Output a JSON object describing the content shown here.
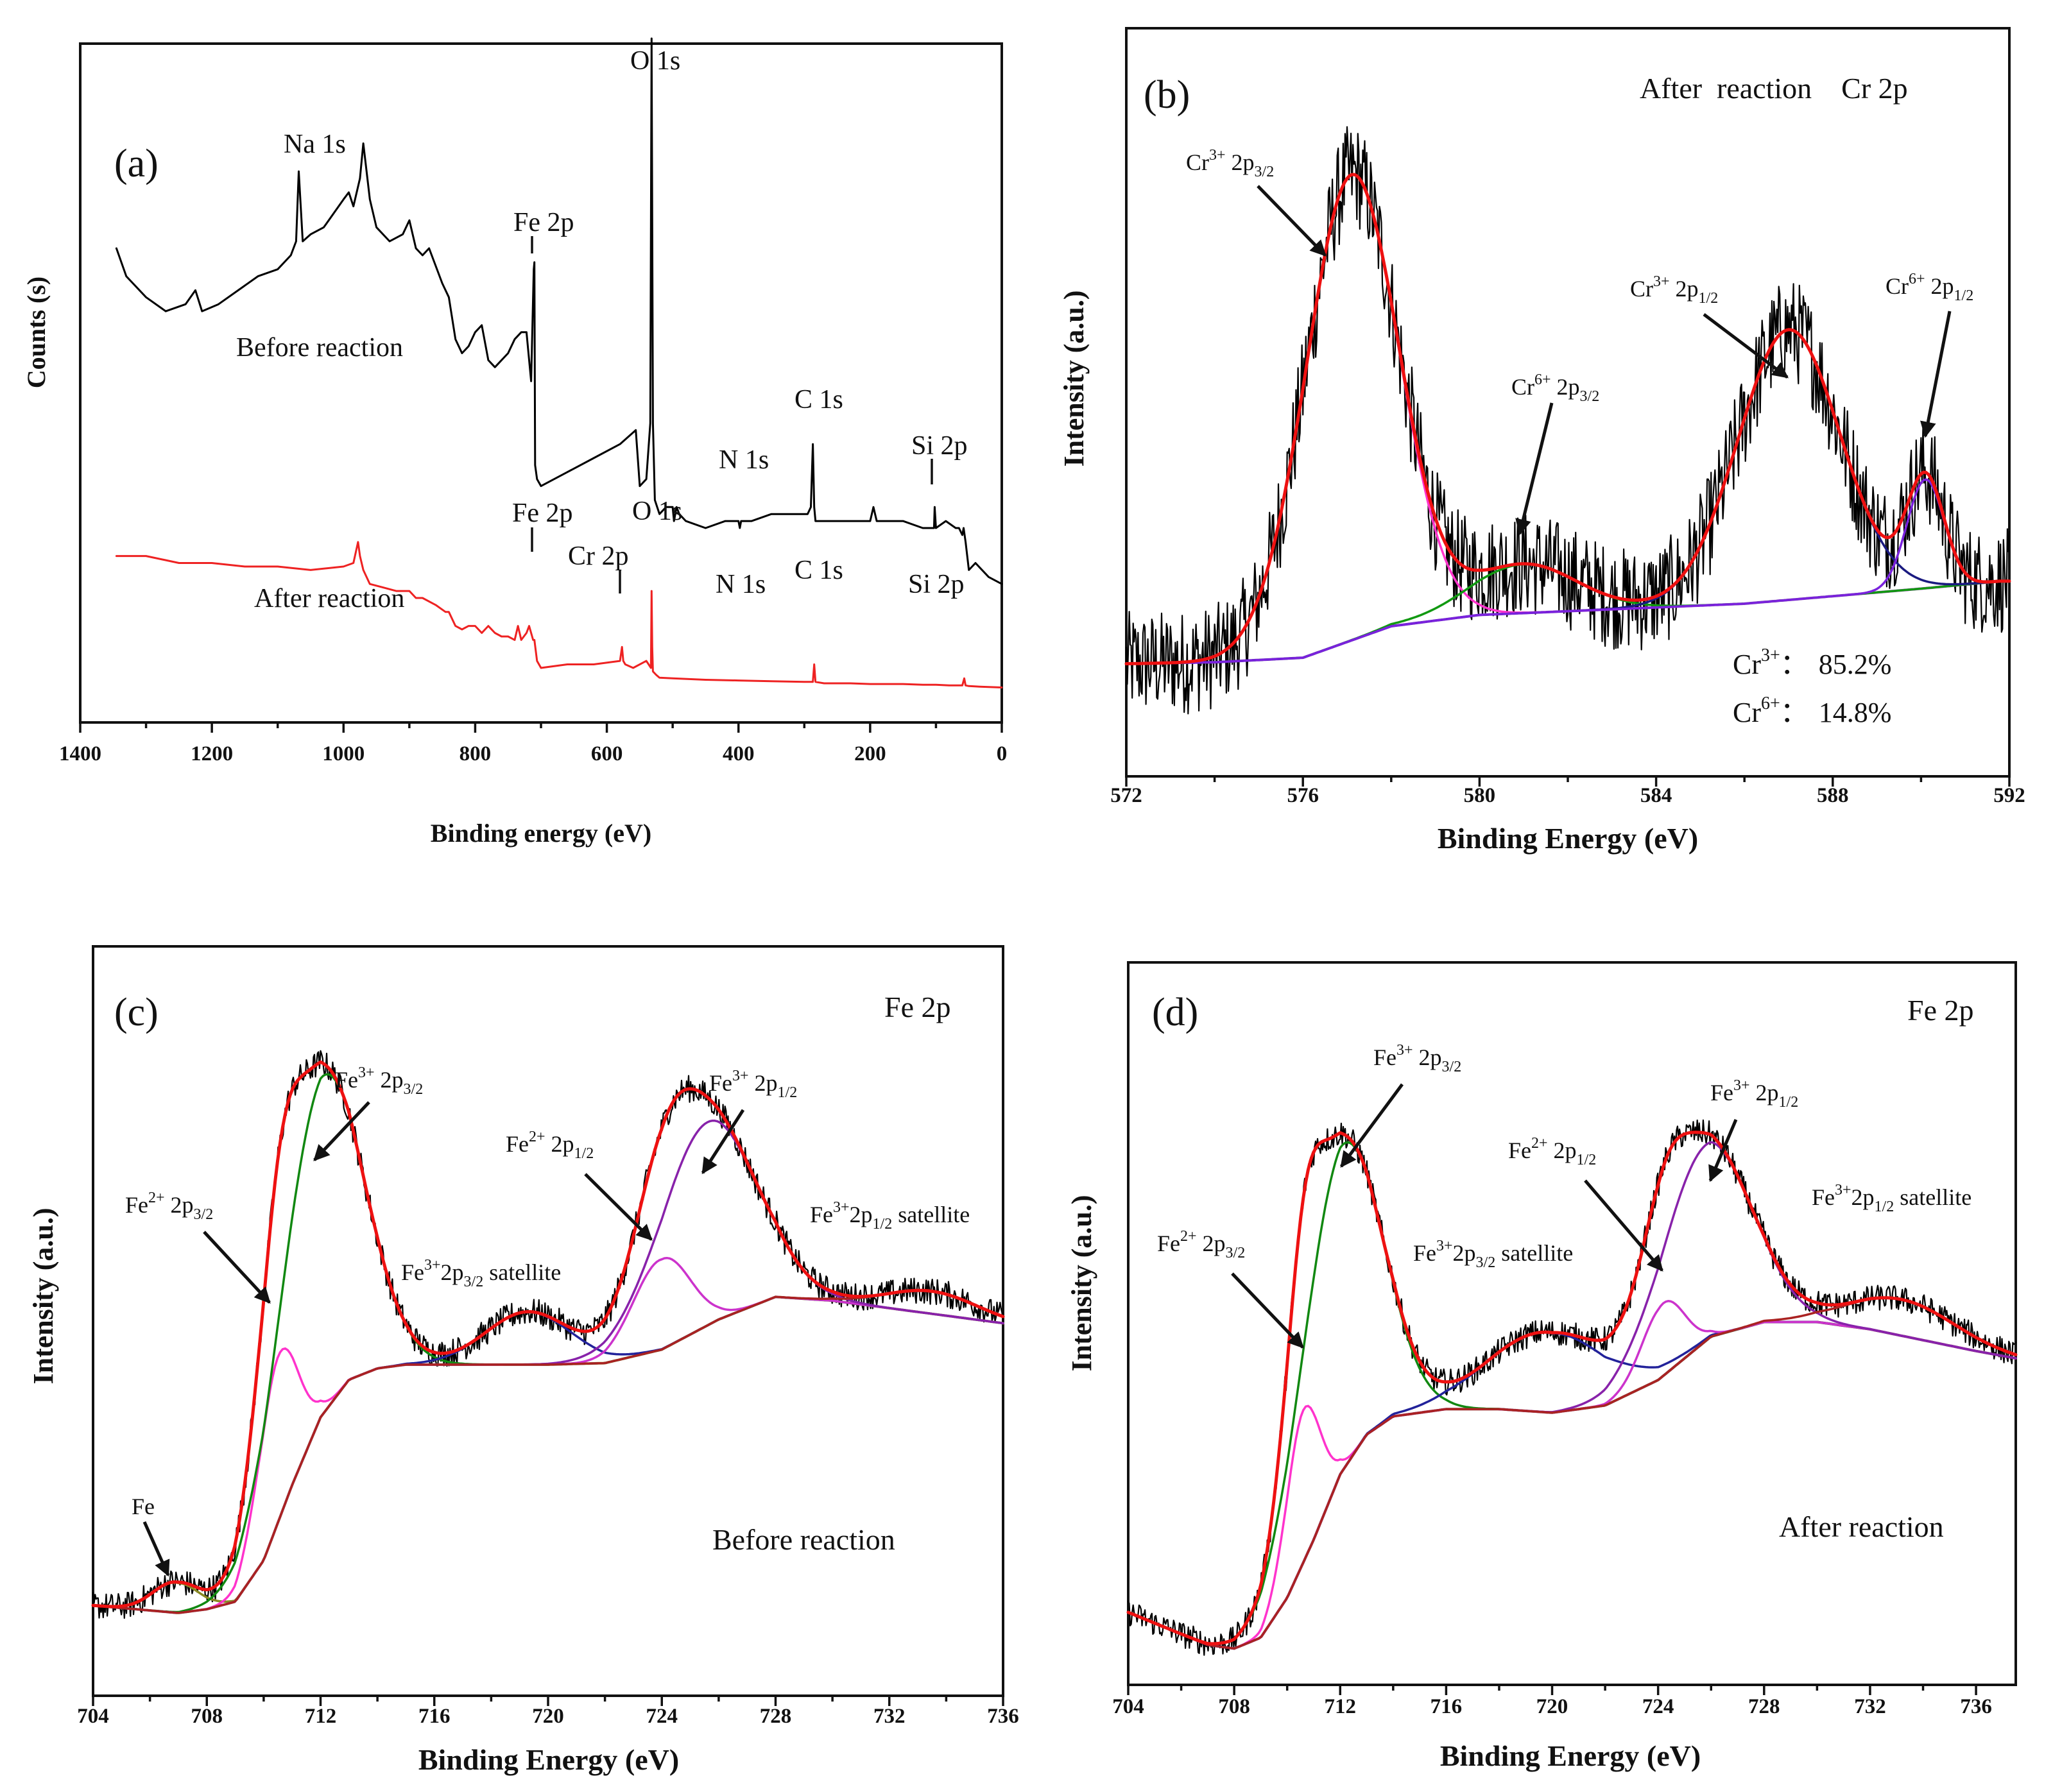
{
  "chart_data": [
    {
      "panel": "(a)",
      "type": "line",
      "xlabel": "Binding energy (eV)",
      "ylabel": "Counts (s)",
      "xlim": [
        1400,
        0
      ],
      "ylim": [
        0,
        100
      ],
      "xticks": [
        "1400",
        "1200",
        "1000",
        "800",
        "600",
        "400",
        "200",
        "0"
      ],
      "series": [
        {
          "name": "Before reaction",
          "color": "#000000",
          "x": [
            1345,
            1330,
            1300,
            1270,
            1240,
            1225,
            1215,
            1190,
            1160,
            1130,
            1100,
            1080,
            1072,
            1068,
            1062,
            1050,
            1030,
            1000,
            992,
            985,
            975,
            970,
            960,
            950,
            930,
            910,
            900,
            890,
            880,
            870,
            850,
            840,
            830,
            820,
            810,
            800,
            790,
            780,
            770,
            750,
            740,
            730,
            722,
            715,
            711,
            710,
            709,
            706,
            700,
            660,
            620,
            580,
            556,
            550,
            540,
            534,
            532,
            530,
            527,
            520,
            510,
            500,
            498,
            494,
            490,
            480,
            450,
            420,
            400,
            398,
            396,
            380,
            350,
            320,
            295,
            290,
            287,
            285,
            283,
            270,
            240,
            200,
            195,
            190,
            150,
            120,
            103,
            102,
            100,
            85,
            70,
            65,
            60,
            58,
            55,
            50,
            40,
            20,
            0
          ],
          "y": [
            70,
            66,
            63,
            61,
            62,
            64,
            61,
            62,
            64,
            66,
            67,
            69,
            71,
            81,
            71,
            72,
            73,
            77,
            78,
            76,
            80,
            85,
            77,
            73,
            71,
            72,
            74,
            70,
            69,
            70,
            65,
            63,
            57,
            55,
            56,
            58,
            59,
            54,
            53,
            55,
            57,
            58,
            58,
            51,
            67,
            68,
            39,
            37,
            36,
            38,
            40,
            42,
            44,
            36,
            37,
            45,
            100,
            45,
            34,
            32,
            33,
            33,
            31,
            33,
            32,
            31,
            30,
            31,
            31,
            30,
            31,
            31,
            32,
            32,
            32,
            33,
            42,
            33,
            31,
            31,
            31,
            31,
            33,
            31,
            31,
            30,
            30,
            33,
            30,
            31,
            30,
            30,
            29,
            30,
            28,
            24,
            25,
            23,
            22
          ]
        },
        {
          "name": "After reaction",
          "color": "#ee2222",
          "x": [
            1345,
            1300,
            1250,
            1200,
            1150,
            1100,
            1050,
            1000,
            985,
            978,
            975,
            970,
            960,
            940,
            920,
            900,
            890,
            880,
            860,
            845,
            840,
            830,
            820,
            810,
            800,
            790,
            780,
            770,
            760,
            750,
            740,
            735,
            730,
            722,
            718,
            712,
            710,
            706,
            700,
            660,
            620,
            580,
            577,
            575,
            572,
            560,
            540,
            533,
            532,
            531,
            530,
            525,
            520,
            500,
            450,
            400,
            350,
            300,
            287,
            285,
            283,
            270,
            230,
            200,
            150,
            120,
            100,
            80,
            60,
            57,
            55,
            50,
            30,
            0
          ],
          "y": [
            26,
            26,
            25,
            25,
            24.5,
            24.5,
            24,
            24.5,
            25,
            28,
            26,
            24,
            22,
            21.5,
            21,
            21,
            20,
            20,
            19,
            18,
            18,
            16,
            15.5,
            16,
            16,
            15,
            16,
            15,
            14.5,
            14.5,
            14,
            16,
            14,
            15,
            16,
            14,
            14,
            11,
            10,
            10.5,
            10.5,
            11,
            13,
            11,
            10.5,
            10,
            11,
            10,
            21,
            13,
            9.5,
            9,
            8.6,
            8.5,
            8.3,
            8.2,
            8.1,
            8,
            8,
            10.5,
            8,
            7.8,
            7.8,
            7.7,
            7.7,
            7.6,
            7.6,
            7.5,
            7.5,
            8.5,
            7.5,
            7.4,
            7.3,
            7.2
          ]
        }
      ],
      "annotations": [
        "Na 1s",
        "O 1s",
        "Fe 2p",
        "C 1s",
        "N 1s",
        "Si 2p",
        "Cr 2p",
        "O 1s",
        "Fe 2p",
        "C 1s",
        "N 1s",
        "Si 2p"
      ],
      "labels": {
        "before": "Before reaction",
        "after": "After reaction"
      },
      "text": {
        "panel": "(a)",
        "na1s": "Na 1s",
        "o1s_b": "O 1s",
        "fe2p_b": "Fe 2p",
        "c1s_b": "C 1s",
        "n1s_b": "N 1s",
        "si2p_b": "Si 2p",
        "fe2p_a": "Fe 2p",
        "o1s_a": "O 1s",
        "cr2p_a": "Cr 2p",
        "n1s_a": "N 1s",
        "c1s_a": "C 1s",
        "si2p_a": "Si 2p"
      }
    },
    {
      "panel": "(b)",
      "type": "line",
      "title": "After  reaction    Cr 2p",
      "xlabel": "Binding Energy (eV)",
      "ylabel": "Intensity (a.u.)",
      "xlim": [
        572,
        592
      ],
      "ylim": [
        0,
        100
      ],
      "xticks": [
        "572",
        "576",
        "580",
        "584",
        "588",
        "592"
      ],
      "background": {
        "x": [
          572,
          574,
          576,
          578,
          580,
          582,
          584,
          586,
          588,
          590,
          591.8
        ],
        "y": [
          15,
          15.2,
          15.8,
          20,
          21.5,
          22,
          22.5,
          23,
          24,
          25,
          26
        ]
      },
      "peaks": [
        {
          "name": "Cr3+ 2p3/2",
          "center": 577.1,
          "height": 62,
          "sigma": 1.05,
          "color": "#ff33cc"
        },
        {
          "name": "Cr6+ 2p3/2",
          "center": 581.0,
          "height": 6.5,
          "sigma": 1.2,
          "color": "#119911"
        },
        {
          "name": "Cr3+ 2p1/2",
          "center": 587.0,
          "height": 36,
          "sigma": 1.15,
          "color": "#1a1a80"
        },
        {
          "name": "Cr6+ 2p1/2",
          "center": 590.1,
          "height": 14.5,
          "sigma": 0.42,
          "color": "#7a22dd"
        }
      ],
      "series": [
        {
          "name": "envelope",
          "color": "#ee1111"
        },
        {
          "name": "raw",
          "color": "#000000"
        },
        {
          "name": "background",
          "color": "#8833cc"
        }
      ],
      "composition": [
        {
          "label": "Cr",
          "sup": "3+",
          "value": "85.2%"
        },
        {
          "label": "Cr",
          "sup": "6+",
          "value": "14.8%"
        }
      ],
      "text": {
        "panel": "(b)",
        "title": "After  reaction    Cr 2p",
        "sep": "：",
        "p1": "Cr",
        "p1sup": "3+",
        "p1tail": " 2p",
        "p1sub": "3/2",
        "p2": "Cr",
        "p2sup": "6+",
        "p2tail": " 2p",
        "p2sub": "3/2",
        "p3": "Cr",
        "p3sup": "3+",
        "p3tail": " 2p",
        "p3sub": "1/2",
        "p4": "Cr",
        "p4sup": "6+",
        "p4tail": " 2p",
        "p4sub": "1/2"
      }
    },
    {
      "panel": "(c)",
      "type": "line",
      "title": "Fe 2p",
      "condition": "Before reaction",
      "xlabel": "Binding Energy (eV)",
      "ylabel": "Intensity (a.u.)",
      "xlim": [
        704,
        736
      ],
      "ylim": [
        0,
        100
      ],
      "xticks": [
        "704",
        "708",
        "712",
        "716",
        "720",
        "724",
        "728",
        "732",
        "736"
      ],
      "background": {
        "x": [
          704,
          707,
          708,
          709,
          710,
          711,
          712,
          713,
          714,
          715,
          716,
          718,
          720,
          722,
          724,
          726,
          728,
          730,
          732,
          734,
          736
        ],
        "y": [
          12,
          11,
          11.5,
          12.5,
          18,
          28,
          37,
          42,
          43.5,
          44,
          44,
          44,
          44,
          44.2,
          46,
          50,
          53,
          52.5,
          51.5,
          50.5,
          49.5
        ]
      },
      "peaks": [
        {
          "name": "Fe",
          "center": 706.9,
          "height": 4,
          "sigma": 0.8,
          "color": "#888822"
        },
        {
          "name": "Fe2+ 2p3/2",
          "center": 710.5,
          "height": 22,
          "sigma": 0.7,
          "color": "#ff33cc"
        },
        {
          "name": "Fe3+ 2p3/2",
          "center": 712.0,
          "height": 45,
          "sigma": 1.45,
          "color": "#118811"
        },
        {
          "name": "Fe3+2p3/2 satellite",
          "center": 719.3,
          "height": 7,
          "sigma": 1.5,
          "color": "#22229a"
        },
        {
          "name": "Fe2+ 2p1/2",
          "center": 724.0,
          "height": 12,
          "sigma": 1.0,
          "color": "#cc33cc"
        },
        {
          "name": "Fe3+ 2p1/2",
          "center": 725.6,
          "height": 27,
          "sigma": 1.7,
          "color": "#8822aa"
        },
        {
          "name": "Fe3+2p1/2 satellite",
          "center": 733.5,
          "height": 3,
          "sigma": 1.6,
          "color": "#aa2222"
        }
      ],
      "series": [
        {
          "name": "envelope",
          "color": "#ee1111"
        },
        {
          "name": "raw",
          "color": "#000000"
        },
        {
          "name": "background",
          "color": "#998822"
        }
      ],
      "text": {
        "panel": "(c)",
        "title": "Fe 2p",
        "condition": "Before reaction",
        "fe": "Fe",
        "e": "Fe",
        "sat": " satellite",
        "s1": "2+",
        "t1": " 2p",
        "b1": "3/2",
        "s2": "3+",
        "t2": " 2p",
        "b2": "3/2",
        "s3": "2+",
        "t3": " 2p",
        "b3": "1/2",
        "s4": "3+",
        "t4": " 2p",
        "b4": "1/2",
        "s5": "3+",
        "t5": "2p",
        "b5": "3/2",
        "s6": "3+",
        "t6": "2p",
        "b6": "1/2"
      }
    },
    {
      "panel": "(d)",
      "type": "line",
      "title": "Fe 2p",
      "condition": "After reaction",
      "xlabel": "Binding Energy (eV)",
      "ylabel": "Intensity (a.u.)",
      "xlim": [
        704,
        737.5
      ],
      "ylim": [
        0,
        100
      ],
      "xticks": [
        "704",
        "708",
        "712",
        "716",
        "720",
        "724",
        "728",
        "732",
        "736"
      ],
      "background": {
        "x": [
          704,
          706,
          707,
          708,
          709,
          710,
          711,
          712,
          713,
          714,
          716,
          718,
          720,
          722,
          724,
          726,
          728,
          730,
          732,
          734,
          736,
          737.5
        ],
        "y": [
          10,
          7,
          5.5,
          5,
          6.5,
          12,
          20,
          29,
          34.5,
          37,
          38,
          38,
          37.5,
          38.5,
          42,
          48,
          50,
          50,
          49,
          47.5,
          46,
          45
        ]
      },
      "peaks": [
        {
          "name": "Fe2+ 2p3/2",
          "center": 710.6,
          "height": 21,
          "sigma": 0.65,
          "color": "#ff33cc"
        },
        {
          "name": "Fe3+ 2p3/2",
          "center": 712.0,
          "height": 45,
          "sigma": 1.5,
          "color": "#118811"
        },
        {
          "name": "Fe3+2p3/2 satellite",
          "center": 719.8,
          "height": 11,
          "sigma": 2.2,
          "color": "#22229a"
        },
        {
          "name": "Fe2+ 2p1/2",
          "center": 724.2,
          "height": 10,
          "sigma": 0.8,
          "color": "#cc33cc"
        },
        {
          "name": "Fe3+ 2p1/2",
          "center": 725.8,
          "height": 27,
          "sigma": 1.7,
          "color": "#8822aa"
        },
        {
          "name": "Fe3+2p1/2 satellite",
          "center": 733.2,
          "height": 5,
          "sigma": 2.0,
          "color": "#aa2222"
        }
      ],
      "series": [
        {
          "name": "envelope",
          "color": "#ee1111"
        },
        {
          "name": "raw",
          "color": "#000000"
        },
        {
          "name": "background",
          "color": "#771b1b"
        }
      ],
      "text": {
        "panel": "(d)",
        "title": "Fe 2p",
        "condition": "After reaction",
        "e": "Fe",
        "sat": " satellite",
        "s1": "2+",
        "t1": " 2p",
        "b1": "3/2",
        "s2": "3+",
        "t2": " 2p",
        "b2": "3/2",
        "s3": "2+",
        "t3": " 2p",
        "b3": "1/2",
        "s4": "3+",
        "t4": " 2p",
        "b4": "1/2",
        "s5": "3+",
        "t5": "2p",
        "b5": "3/2",
        "s6": "3+",
        "t6": "2p",
        "b6": "1/2"
      }
    }
  ]
}
